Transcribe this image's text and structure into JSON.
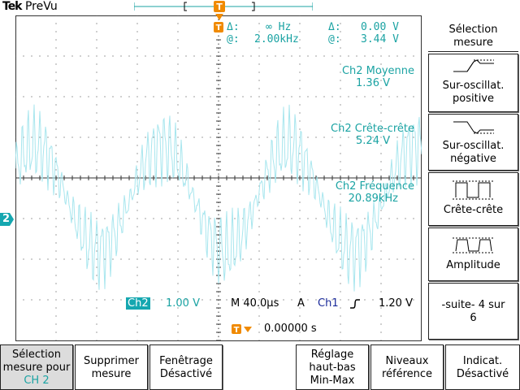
{
  "header": {
    "brand": "Tek",
    "mode": "PreVu"
  },
  "cursor_readout": {
    "freq_delta_label": "Δ:",
    "freq_delta_value": "∞ Hz",
    "volt_delta_label": "Δ:",
    "volt_delta_value": "0.00 V",
    "freq_at_label": "@:",
    "freq_at_value": "2.00kHz",
    "volt_at_label": "@:",
    "volt_at_value": "3.44 V"
  },
  "measurements": [
    {
      "name": "Ch2 Moyenne",
      "value": "1.36 V"
    },
    {
      "name": "Ch2 Crête-crête",
      "value": "5.24 V"
    },
    {
      "name": "Ch2 Fréquence",
      "value": "20.89kHz"
    }
  ],
  "status": {
    "channel": "Ch2",
    "volts_div": "1.00 V",
    "timebase": "M 40.0µs",
    "trigger_mode": "A",
    "trigger_source": "Ch1",
    "trigger_level": "1.20 V",
    "trigger_delay": "0.00000 s",
    "channel_marker": "2"
  },
  "side_menu": {
    "title": "Sélection mesure",
    "items": [
      {
        "label": "Sur-oscillat. positive",
        "icon": "positive-overshoot-icon"
      },
      {
        "label": "Sur-oscillat. négative",
        "icon": "negative-overshoot-icon"
      },
      {
        "label": "Crête-crête",
        "icon": "peak-to-peak-icon"
      },
      {
        "label": "Amplitude",
        "icon": "amplitude-icon"
      },
      {
        "label": "-suite- 4 sur 6",
        "icon": ""
      }
    ]
  },
  "bottom_menu": [
    {
      "label": "Sélection mesure pour",
      "label2": "CH 2"
    },
    {
      "label": "Supprimer mesure"
    },
    {
      "label": "Fenêtrage Désactivé"
    },
    {
      "label": "Réglage haut-bas Min-Max"
    },
    {
      "label": "Niveaux référence"
    },
    {
      "label": "Indicat. Désactivé"
    }
  ],
  "colors": {
    "trace": "#a8e6ee",
    "accent": "#1ba3a3",
    "trigger": "#f08a00",
    "grid": "#333333"
  }
}
